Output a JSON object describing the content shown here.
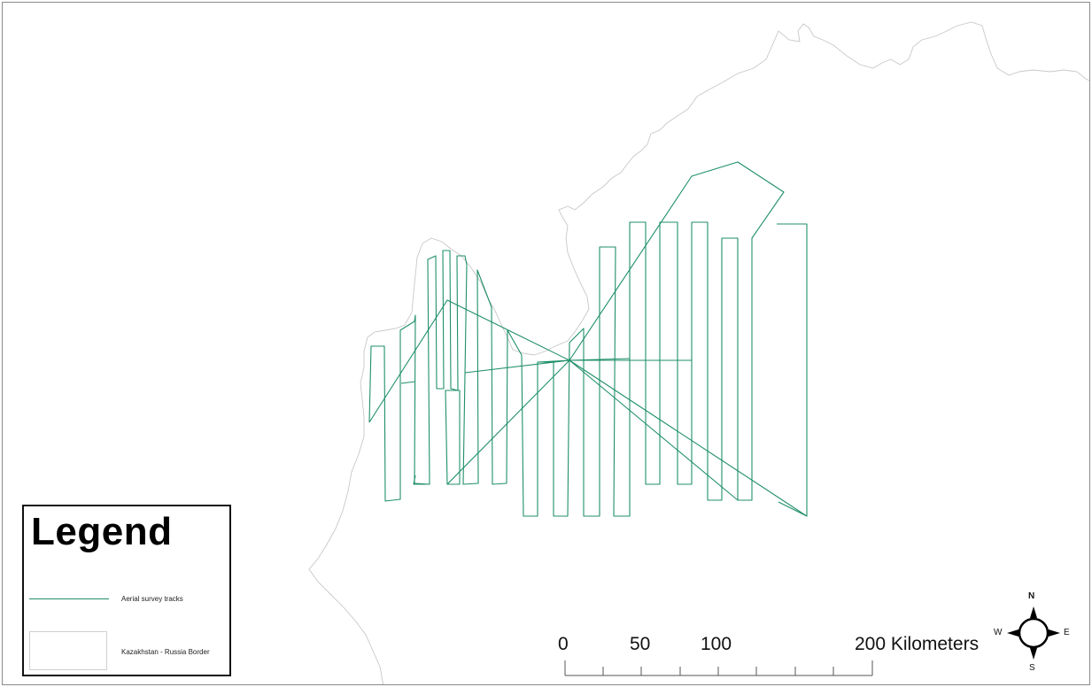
{
  "legend": {
    "title": "Legend",
    "items": [
      {
        "label": "Aerial survey tracks",
        "color": "#1f8f6a"
      },
      {
        "label": "Kazakhstan - Russia Border",
        "color": "#cccccc"
      }
    ]
  },
  "scale_bar": {
    "labels": [
      "0",
      "50",
      "100",
      "200 Kilometers"
    ]
  },
  "north_arrow": {
    "n": "N",
    "s": "S",
    "e": "E",
    "w": "W"
  }
}
